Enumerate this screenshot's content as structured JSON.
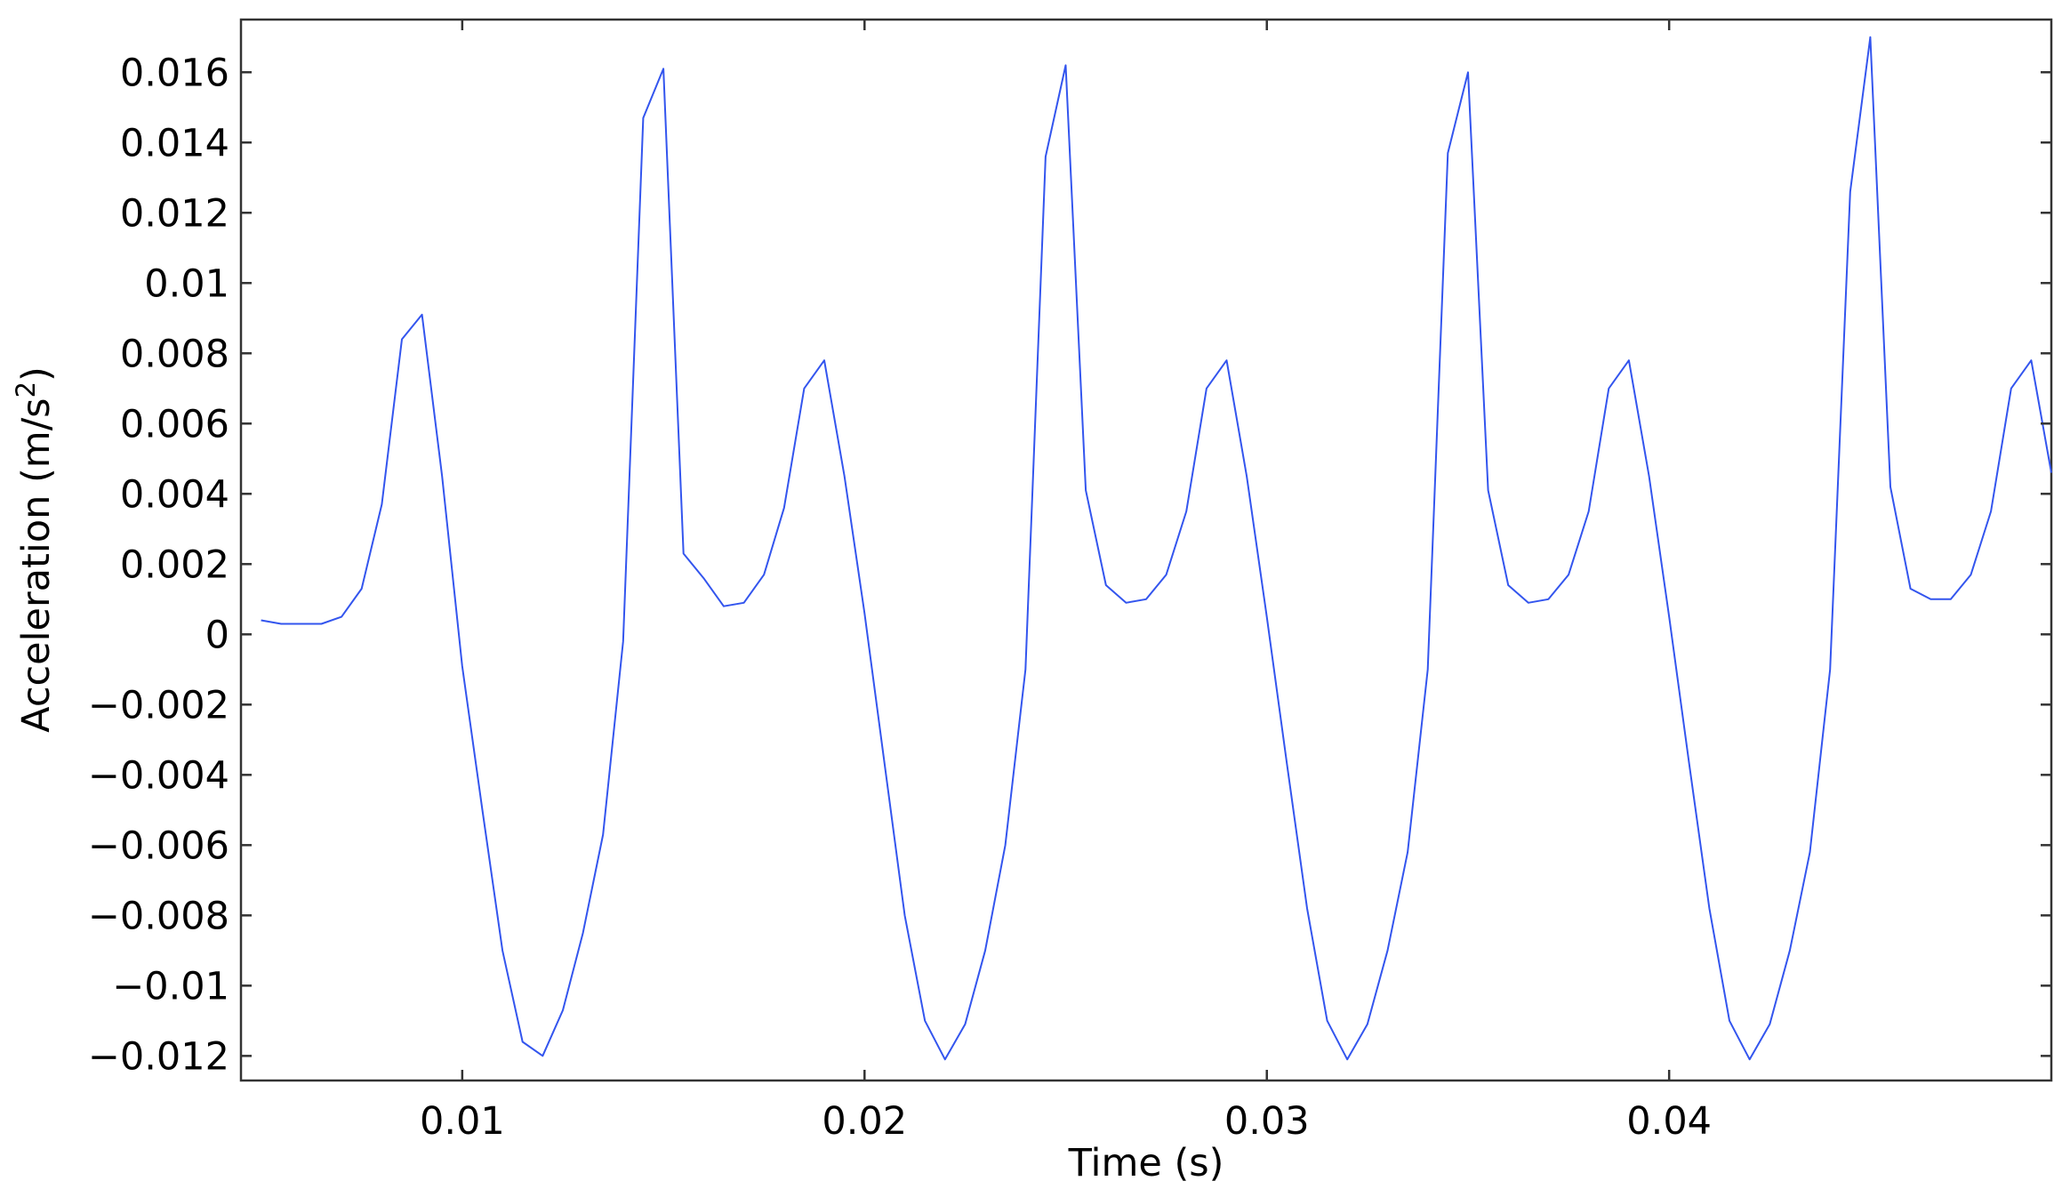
{
  "chart_data": {
    "type": "line",
    "title": "",
    "xlabel": "Time (s)",
    "ylabel_base": "Acceleration (m/s",
    "ylabel_sup": "2",
    "ylabel_close": ")",
    "xlim": [
      0.0045,
      0.0495
    ],
    "ylim": [
      -0.0127,
      0.0175
    ],
    "grid": false,
    "line_color": "#3355ee",
    "x_ticks": [
      {
        "value": 0.01,
        "label": "0.01"
      },
      {
        "value": 0.02,
        "label": "0.02"
      },
      {
        "value": 0.03,
        "label": "0.03"
      },
      {
        "value": 0.04,
        "label": "0.04"
      }
    ],
    "y_ticks": [
      {
        "value": 0.016,
        "label": "0.016"
      },
      {
        "value": 0.014,
        "label": "0.014"
      },
      {
        "value": 0.012,
        "label": "0.012"
      },
      {
        "value": 0.01,
        "label": "0.01"
      },
      {
        "value": 0.008,
        "label": "0.008"
      },
      {
        "value": 0.006,
        "label": "0.006"
      },
      {
        "value": 0.004,
        "label": "0.004"
      },
      {
        "value": 0.002,
        "label": "0.002"
      },
      {
        "value": 0.0,
        "label": "0"
      },
      {
        "value": -0.002,
        "label": "−0.002"
      },
      {
        "value": -0.004,
        "label": "−0.004"
      },
      {
        "value": -0.006,
        "label": "−0.006"
      },
      {
        "value": -0.008,
        "label": "−0.008"
      },
      {
        "value": -0.01,
        "label": "−0.01"
      },
      {
        "value": -0.012,
        "label": "−0.012"
      }
    ],
    "series": [
      {
        "x": [
          0.005,
          0.0055,
          0.006,
          0.0065,
          0.007,
          0.0075,
          0.008,
          0.0085,
          0.009,
          0.0095,
          0.01,
          0.0105,
          0.011,
          0.0115,
          0.012,
          0.0125,
          0.013,
          0.0135,
          0.014,
          0.0145,
          0.015,
          0.0155,
          0.016,
          0.0165,
          0.017,
          0.0175,
          0.018,
          0.0185,
          0.019,
          0.0195,
          0.02,
          0.0205,
          0.021,
          0.0215,
          0.022,
          0.0225,
          0.023,
          0.0235,
          0.024,
          0.0245,
          0.025,
          0.0255,
          0.026,
          0.0265,
          0.027,
          0.0275,
          0.028,
          0.0285,
          0.029,
          0.0295,
          0.03,
          0.0305,
          0.031,
          0.0315,
          0.032,
          0.0325,
          0.033,
          0.0335,
          0.034,
          0.0345,
          0.035,
          0.0355,
          0.036,
          0.0365,
          0.037,
          0.0375,
          0.038,
          0.0385,
          0.039,
          0.0395,
          0.04,
          0.0405,
          0.041,
          0.0415,
          0.042,
          0.0425,
          0.043,
          0.0435,
          0.044,
          0.0445,
          0.045,
          0.0455,
          0.046,
          0.0465,
          0.047,
          0.0475,
          0.048,
          0.0485,
          0.049,
          0.0495
        ],
        "y": [
          0.0004,
          0.0003,
          0.0003,
          0.0003,
          0.0005,
          0.0013,
          0.0037,
          0.0084,
          0.0091,
          0.0045,
          -0.0009,
          -0.005,
          -0.009,
          -0.0116,
          -0.012,
          -0.0107,
          -0.0085,
          -0.0057,
          -0.0002,
          0.0147,
          0.0161,
          0.0023,
          0.0016,
          0.0008,
          0.0009,
          0.0017,
          0.0036,
          0.007,
          0.0078,
          0.0045,
          0.0006,
          -0.0037,
          -0.008,
          -0.011,
          -0.0121,
          -0.0111,
          -0.009,
          -0.006,
          -0.001,
          0.0136,
          0.0162,
          0.0041,
          0.0014,
          0.0009,
          0.001,
          0.0017,
          0.0035,
          0.007,
          0.0078,
          0.0045,
          0.0005,
          -0.0037,
          -0.0078,
          -0.011,
          -0.0121,
          -0.0111,
          -0.009,
          -0.0062,
          -0.001,
          0.0137,
          0.016,
          0.0041,
          0.0014,
          0.0009,
          0.001,
          0.0017,
          0.0035,
          0.007,
          0.0078,
          0.0045,
          0.0005,
          -0.0037,
          -0.0078,
          -0.011,
          -0.0121,
          -0.0111,
          -0.009,
          -0.0062,
          -0.001,
          0.0126,
          0.017,
          0.0042,
          0.0013,
          0.001,
          0.001,
          0.0017,
          0.0035,
          0.007,
          0.0078,
          0.0046
        ]
      }
    ]
  }
}
